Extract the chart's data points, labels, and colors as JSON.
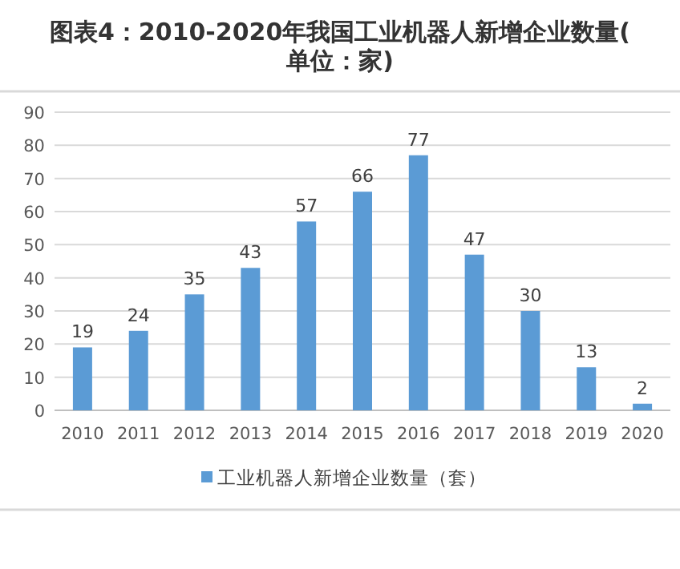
{
  "chart_data": {
    "type": "bar",
    "title": "图表4：2010-2020年我国工业机器人新增企业数量(单位：家)",
    "categories": [
      "2010",
      "2011",
      "2012",
      "2013",
      "2014",
      "2015",
      "2016",
      "2017",
      "2018",
      "2019",
      "2020"
    ],
    "series": [
      {
        "name": "工业机器人新增企业数量（套）",
        "color": "#5b9bd5",
        "values": [
          19,
          24,
          35,
          43,
          57,
          66,
          77,
          47,
          30,
          13,
          2
        ]
      }
    ],
    "ylim": [
      0,
      90
    ],
    "yticks": [
      0,
      10,
      20,
      30,
      40,
      50,
      60,
      70,
      80,
      90
    ],
    "grid": "y",
    "legend": "bottom",
    "data_labels": true
  }
}
